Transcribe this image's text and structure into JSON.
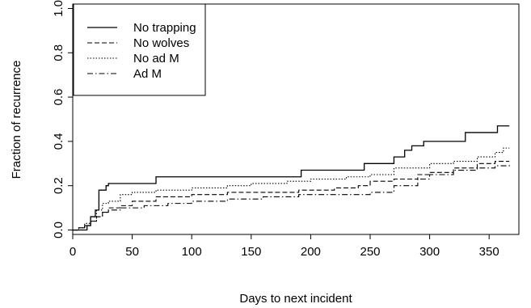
{
  "chart_data": {
    "type": "line",
    "title": "",
    "xlabel": "Days to next incident",
    "ylabel": "Fraction of recurrence",
    "xlim": [
      0,
      375
    ],
    "ylim": [
      -0.02,
      1.02
    ],
    "x_ticks": [
      0,
      50,
      100,
      150,
      200,
      250,
      300,
      350
    ],
    "y_ticks": [
      0.0,
      0.2,
      0.4,
      0.6,
      0.8,
      1.0
    ],
    "x_tick_labels": [
      "0",
      "50",
      "100",
      "150",
      "200",
      "250",
      "300",
      "350"
    ],
    "y_tick_labels": [
      "0.0",
      "0.2",
      "0.4",
      "0.6",
      "0.8",
      "1.0"
    ],
    "grid": false,
    "legend_position": "top-left",
    "step": true,
    "series": [
      {
        "name": "No trapping",
        "dash": "solid",
        "points": [
          [
            0,
            0
          ],
          [
            5,
            0
          ],
          [
            12,
            0.02
          ],
          [
            15,
            0.06
          ],
          [
            19,
            0.09
          ],
          [
            22,
            0.18
          ],
          [
            28,
            0.2
          ],
          [
            30,
            0.21
          ],
          [
            70,
            0.24
          ],
          [
            192,
            0.27
          ],
          [
            245,
            0.3
          ],
          [
            270,
            0.33
          ],
          [
            279,
            0.36
          ],
          [
            285,
            0.38
          ],
          [
            295,
            0.4
          ],
          [
            330,
            0.44
          ],
          [
            357,
            0.47
          ],
          [
            367,
            0.47
          ]
        ]
      },
      {
        "name": "No wolves",
        "dash": "dashed",
        "points": [
          [
            0,
            0
          ],
          [
            5,
            0.01
          ],
          [
            10,
            0.02
          ],
          [
            15,
            0.04
          ],
          [
            20,
            0.06
          ],
          [
            25,
            0.08
          ],
          [
            30,
            0.1
          ],
          [
            40,
            0.11
          ],
          [
            50,
            0.13
          ],
          [
            70,
            0.15
          ],
          [
            100,
            0.16
          ],
          [
            130,
            0.17
          ],
          [
            160,
            0.17
          ],
          [
            190,
            0.18
          ],
          [
            220,
            0.19
          ],
          [
            240,
            0.2
          ],
          [
            250,
            0.22
          ],
          [
            270,
            0.23
          ],
          [
            290,
            0.25
          ],
          [
            300,
            0.26
          ],
          [
            320,
            0.28
          ],
          [
            340,
            0.3
          ],
          [
            355,
            0.31
          ],
          [
            367,
            0.31
          ]
        ]
      },
      {
        "name": "No ad M",
        "dash": "dotted",
        "points": [
          [
            0,
            0
          ],
          [
            5,
            0.01
          ],
          [
            10,
            0.03
          ],
          [
            15,
            0.06
          ],
          [
            20,
            0.09
          ],
          [
            25,
            0.12
          ],
          [
            30,
            0.13
          ],
          [
            40,
            0.16
          ],
          [
            50,
            0.17
          ],
          [
            70,
            0.18
          ],
          [
            100,
            0.19
          ],
          [
            130,
            0.2
          ],
          [
            150,
            0.21
          ],
          [
            180,
            0.22
          ],
          [
            200,
            0.23
          ],
          [
            230,
            0.24
          ],
          [
            250,
            0.25
          ],
          [
            270,
            0.28
          ],
          [
            300,
            0.3
          ],
          [
            320,
            0.31
          ],
          [
            340,
            0.33
          ],
          [
            355,
            0.35
          ],
          [
            362,
            0.37
          ],
          [
            367,
            0.37
          ]
        ]
      },
      {
        "name": "Ad M",
        "dash": "dashdot",
        "points": [
          [
            0,
            0
          ],
          [
            5,
            0.01
          ],
          [
            10,
            0.02
          ],
          [
            15,
            0.04
          ],
          [
            20,
            0.06
          ],
          [
            25,
            0.08
          ],
          [
            30,
            0.09
          ],
          [
            40,
            0.1
          ],
          [
            60,
            0.11
          ],
          [
            80,
            0.12
          ],
          [
            100,
            0.13
          ],
          [
            130,
            0.14
          ],
          [
            160,
            0.15
          ],
          [
            190,
            0.16
          ],
          [
            220,
            0.16
          ],
          [
            250,
            0.17
          ],
          [
            270,
            0.2
          ],
          [
            290,
            0.23
          ],
          [
            300,
            0.25
          ],
          [
            320,
            0.27
          ],
          [
            340,
            0.28
          ],
          [
            355,
            0.29
          ],
          [
            367,
            0.3
          ]
        ]
      }
    ]
  }
}
